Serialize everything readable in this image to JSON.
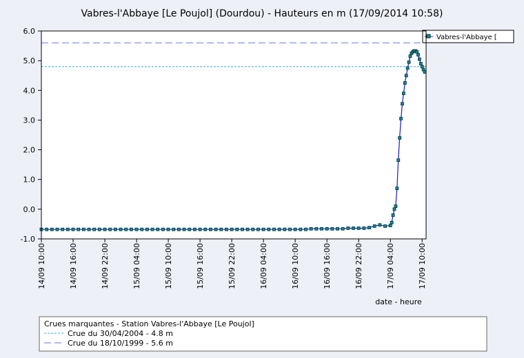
{
  "chart_data": {
    "type": "line",
    "title": "Vabres-l'Abbaye [Le Poujol] (Dourdou) - Hauteurs en m (17/09/2014 10:58)",
    "x_label": "date - heure",
    "xlim": [
      "14/09 10:00",
      "17/09 10:45"
    ],
    "xticks": [
      "14/09 10:00",
      "14/09 16:00",
      "14/09 22:00",
      "15/09 04:00",
      "15/09 10:00",
      "15/09 16:00",
      "15/09 22:00",
      "16/09 04:00",
      "16/09 10:00",
      "16/09 16:00",
      "16/09 22:00",
      "17/09 04:00",
      "17/09 10:00"
    ],
    "ylim": [
      -1,
      6
    ],
    "yticks": [
      {
        "value": -1,
        "label": "-1.0"
      },
      {
        "value": 0,
        "label": "0.0"
      },
      {
        "value": 1,
        "label": "1.0"
      },
      {
        "value": 2,
        "label": "2.0"
      },
      {
        "value": 3,
        "label": "3.0"
      },
      {
        "value": 4,
        "label": "4.0"
      },
      {
        "value": 5,
        "label": "5.0"
      },
      {
        "value": 6,
        "label": "6.0"
      }
    ],
    "x": [
      "14/09 10:00",
      "14/09 11:00",
      "14/09 12:00",
      "14/09 13:00",
      "14/09 14:00",
      "14/09 15:00",
      "14/09 16:00",
      "14/09 17:00",
      "14/09 18:00",
      "14/09 19:00",
      "14/09 20:00",
      "14/09 21:00",
      "14/09 22:00",
      "14/09 23:00",
      "15/09 00:00",
      "15/09 01:00",
      "15/09 02:00",
      "15/09 03:00",
      "15/09 04:00",
      "15/09 05:00",
      "15/09 06:00",
      "15/09 07:00",
      "15/09 08:00",
      "15/09 09:00",
      "15/09 10:00",
      "15/09 11:00",
      "15/09 12:00",
      "15/09 13:00",
      "15/09 14:00",
      "15/09 15:00",
      "15/09 16:00",
      "15/09 17:00",
      "15/09 18:00",
      "15/09 19:00",
      "15/09 20:00",
      "15/09 21:00",
      "15/09 22:00",
      "15/09 23:00",
      "16/09 00:00",
      "16/09 01:00",
      "16/09 02:00",
      "16/09 03:00",
      "16/09 04:00",
      "16/09 05:00",
      "16/09 06:00",
      "16/09 07:00",
      "16/09 08:00",
      "16/09 09:00",
      "16/09 10:00",
      "16/09 11:00",
      "16/09 12:00",
      "16/09 13:00",
      "16/09 14:00",
      "16/09 15:00",
      "16/09 16:00",
      "16/09 17:00",
      "16/09 18:00",
      "16/09 19:00",
      "16/09 20:00",
      "16/09 21:00",
      "16/09 22:00",
      "16/09 23:00",
      "17/09 00:00",
      "17/09 01:00",
      "17/09 02:00",
      "17/09 03:00",
      "17/09 04:00",
      "17/09 04:15",
      "17/09 04:30",
      "17/09 04:45",
      "17/09 05:00",
      "17/09 05:15",
      "17/09 05:30",
      "17/09 05:45",
      "17/09 06:00",
      "17/09 06:15",
      "17/09 06:30",
      "17/09 06:45",
      "17/09 07:00",
      "17/09 07:15",
      "17/09 07:30",
      "17/09 07:45",
      "17/09 08:00",
      "17/09 08:15",
      "17/09 08:30",
      "17/09 08:45",
      "17/09 09:00",
      "17/09 09:15",
      "17/09 09:30",
      "17/09 09:45",
      "17/09 10:00",
      "17/09 10:15",
      "17/09 10:30"
    ],
    "series": [
      {
        "name": "Vabres-l'Abbaye [",
        "color": "#1818d0",
        "marker_color": "#1a8a9a",
        "values": [
          -0.68,
          -0.68,
          -0.68,
          -0.68,
          -0.68,
          -0.68,
          -0.68,
          -0.68,
          -0.68,
          -0.68,
          -0.68,
          -0.68,
          -0.68,
          -0.68,
          -0.68,
          -0.68,
          -0.68,
          -0.68,
          -0.68,
          -0.68,
          -0.68,
          -0.68,
          -0.68,
          -0.68,
          -0.68,
          -0.68,
          -0.68,
          -0.68,
          -0.68,
          -0.68,
          -0.68,
          -0.68,
          -0.68,
          -0.68,
          -0.68,
          -0.68,
          -0.68,
          -0.68,
          -0.68,
          -0.68,
          -0.68,
          -0.68,
          -0.68,
          -0.68,
          -0.68,
          -0.68,
          -0.68,
          -0.68,
          -0.68,
          -0.68,
          -0.68,
          -0.66,
          -0.66,
          -0.66,
          -0.66,
          -0.66,
          -0.66,
          -0.66,
          -0.64,
          -0.64,
          -0.64,
          -0.64,
          -0.62,
          -0.57,
          -0.53,
          -0.57,
          -0.55,
          -0.45,
          -0.2,
          0.0,
          0.1,
          0.7,
          1.65,
          2.4,
          3.05,
          3.55,
          3.9,
          4.25,
          4.5,
          4.75,
          4.95,
          5.15,
          5.25,
          5.3,
          5.33,
          5.33,
          5.3,
          5.2,
          5.05,
          4.9,
          4.8,
          4.7,
          4.62
        ]
      }
    ],
    "legend": "top-right",
    "reference_title": "Crues marquantes - Station Vabres-l'Abbaye [Le Poujol]",
    "reference_lines": [
      {
        "value": 4.8,
        "label": "Crue du 30/04/2004 - 4.8 m",
        "color": "#33aadd",
        "style": "dotted"
      },
      {
        "value": 5.6,
        "label": "Crue du 18/10/1999 - 5.6 m",
        "color": "#6677ee",
        "style": "dashed"
      }
    ]
  }
}
